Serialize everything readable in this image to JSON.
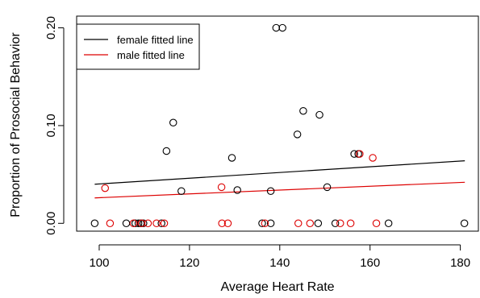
{
  "chart_data": {
    "type": "scatter",
    "xlabel": "Average Heart Rate",
    "ylabel": "Proportion of Prosocial Behavior",
    "xlim": [
      95,
      184
    ],
    "ylim": [
      -0.008,
      0.212
    ],
    "x_ticks": [
      100,
      120,
      140,
      160,
      180
    ],
    "y_ticks": [
      0.0,
      0.1,
      0.2
    ],
    "y_tick_labels": [
      "0.00",
      "0.10",
      "0.20"
    ],
    "grid": false,
    "legend_position": "top-left",
    "series": [
      {
        "name": "female",
        "color": "#000000",
        "points": [
          {
            "x": 99,
            "y": 0.0
          },
          {
            "x": 106,
            "y": 0.0
          },
          {
            "x": 108,
            "y": 0.0
          },
          {
            "x": 108.7,
            "y": 0.0
          },
          {
            "x": 109.2,
            "y": 0.0
          },
          {
            "x": 109.8,
            "y": 0.0
          },
          {
            "x": 113.8,
            "y": 0.0
          },
          {
            "x": 114.9,
            "y": 0.074
          },
          {
            "x": 116.4,
            "y": 0.103
          },
          {
            "x": 118.2,
            "y": 0.033
          },
          {
            "x": 129.4,
            "y": 0.067
          },
          {
            "x": 130.6,
            "y": 0.034
          },
          {
            "x": 136.1,
            "y": 0.0
          },
          {
            "x": 138,
            "y": 0.0
          },
          {
            "x": 138,
            "y": 0.033
          },
          {
            "x": 139.2,
            "y": 0.2
          },
          {
            "x": 140.6,
            "y": 0.2
          },
          {
            "x": 143.9,
            "y": 0.091
          },
          {
            "x": 145.2,
            "y": 0.115
          },
          {
            "x": 148.5,
            "y": 0.0
          },
          {
            "x": 148.8,
            "y": 0.111
          },
          {
            "x": 150.5,
            "y": 0.037
          },
          {
            "x": 152.3,
            "y": 0.0
          },
          {
            "x": 156.5,
            "y": 0.071
          },
          {
            "x": 157.4,
            "y": 0.071
          },
          {
            "x": 164.1,
            "y": 0.0
          },
          {
            "x": 180.9,
            "y": 0.0
          }
        ]
      },
      {
        "name": "male",
        "color": "#dd0000",
        "points": [
          {
            "x": 101.3,
            "y": 0.036
          },
          {
            "x": 102.4,
            "y": 0.0
          },
          {
            "x": 107.6,
            "y": 0.0
          },
          {
            "x": 109.4,
            "y": 0.0
          },
          {
            "x": 110.8,
            "y": 0.0
          },
          {
            "x": 112.7,
            "y": 0.0
          },
          {
            "x": 114.4,
            "y": 0.0
          },
          {
            "x": 127.1,
            "y": 0.037
          },
          {
            "x": 127.2,
            "y": 0.0
          },
          {
            "x": 128.5,
            "y": 0.0
          },
          {
            "x": 136.7,
            "y": 0.0
          },
          {
            "x": 144.1,
            "y": 0.0
          },
          {
            "x": 146.7,
            "y": 0.0
          },
          {
            "x": 153.4,
            "y": 0.0
          },
          {
            "x": 155.7,
            "y": 0.0
          },
          {
            "x": 157.7,
            "y": 0.071
          },
          {
            "x": 160.6,
            "y": 0.067
          },
          {
            "x": 161.4,
            "y": 0.0
          }
        ]
      }
    ],
    "fitted_lines": [
      {
        "name": "female fitted line",
        "color": "#000000",
        "x": [
          99,
          181
        ],
        "y": [
          0.04,
          0.064
        ]
      },
      {
        "name": "male fitted line",
        "color": "#dd0000",
        "x": [
          99,
          181
        ],
        "y": [
          0.026,
          0.042
        ]
      }
    ]
  }
}
